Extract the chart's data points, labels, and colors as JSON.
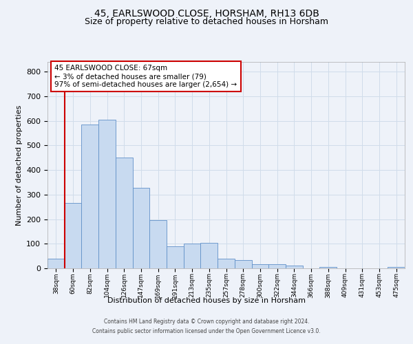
{
  "title": "45, EARLSWOOD CLOSE, HORSHAM, RH13 6DB",
  "subtitle": "Size of property relative to detached houses in Horsham",
  "xlabel": "Distribution of detached houses by size in Horsham",
  "ylabel": "Number of detached properties",
  "footer_line1": "Contains HM Land Registry data © Crown copyright and database right 2024.",
  "footer_line2": "Contains public sector information licensed under the Open Government Licence v3.0.",
  "bar_labels": [
    "38sqm",
    "60sqm",
    "82sqm",
    "104sqm",
    "126sqm",
    "147sqm",
    "169sqm",
    "191sqm",
    "213sqm",
    "235sqm",
    "257sqm",
    "278sqm",
    "300sqm",
    "322sqm",
    "344sqm",
    "366sqm",
    "388sqm",
    "409sqm",
    "431sqm",
    "453sqm",
    "475sqm"
  ],
  "bar_values": [
    39,
    266,
    585,
    604,
    452,
    329,
    195,
    90,
    101,
    104,
    38,
    33,
    17,
    17,
    10,
    0,
    7,
    0,
    0,
    0,
    7
  ],
  "bar_color": "#c8daf0",
  "bar_edge_color": "#6090c8",
  "bar_linewidth": 0.6,
  "vline_color": "#cc0000",
  "ylim_min": 0,
  "ylim_max": 840,
  "yticks": [
    0,
    100,
    200,
    300,
    400,
    500,
    600,
    700,
    800
  ],
  "grid_color": "#d0dcea",
  "annotation_text": "45 EARLSWOOD CLOSE: 67sqm\n← 3% of detached houses are smaller (79)\n97% of semi-detached houses are larger (2,654) →",
  "annotation_box_edgecolor": "#cc0000",
  "bg_color": "#eef2f9",
  "title_fontsize": 10,
  "subtitle_fontsize": 9,
  "ylabel_fontsize": 8,
  "xlabel_fontsize": 8,
  "tick_fontsize": 8,
  "xtick_fontsize": 6.5,
  "footer_fontsize": 5.5,
  "annotation_fontsize": 7.5
}
